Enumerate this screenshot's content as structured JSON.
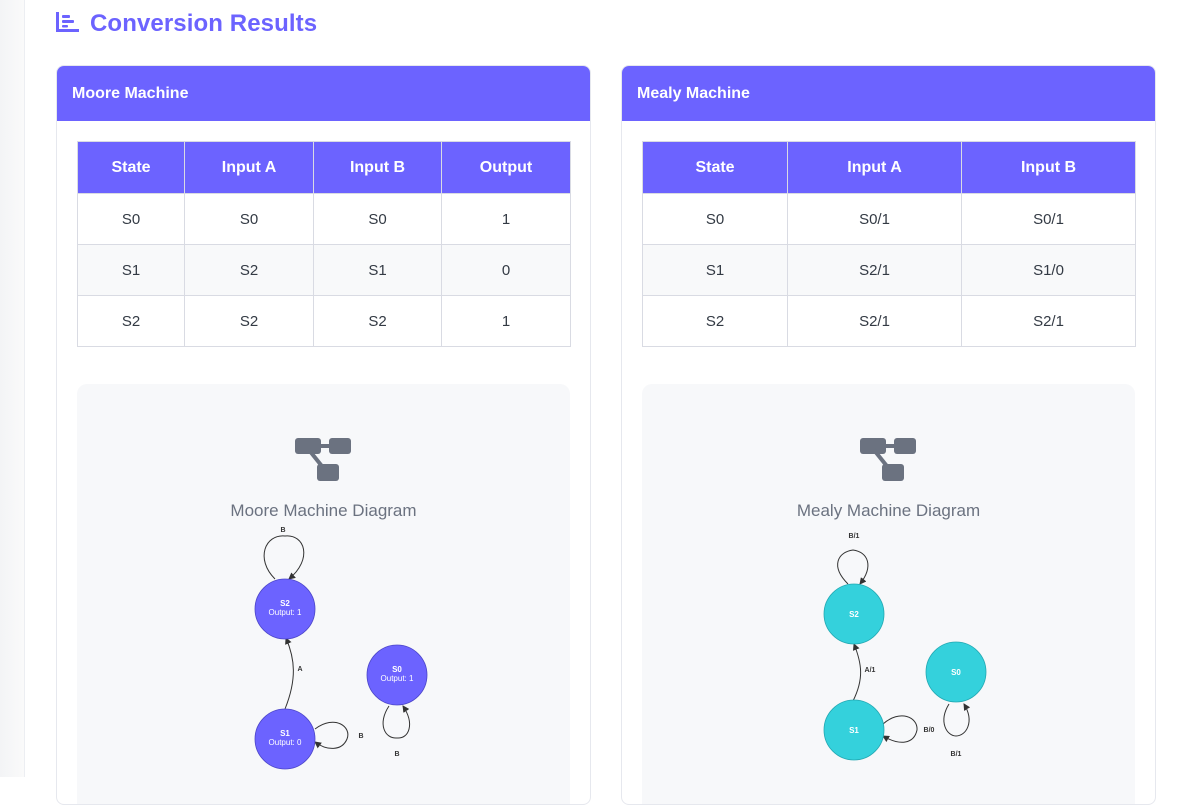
{
  "header": {
    "title": "Conversion Results",
    "icon": "chart-icon"
  },
  "moore": {
    "title": "Moore Machine",
    "columns": [
      "State",
      "Input A",
      "Input B",
      "Output"
    ],
    "rows": [
      [
        "S0",
        "S0",
        "S0",
        "1"
      ],
      [
        "S1",
        "S2",
        "S1",
        "0"
      ],
      [
        "S2",
        "S2",
        "S2",
        "1"
      ]
    ],
    "diagram": {
      "title": "Moore Machine Diagram",
      "icon": "diagram-icon",
      "node_color": "#6c63ff",
      "nodes": {
        "s2": {
          "name": "S2",
          "output": "Output: 1"
        },
        "s0": {
          "name": "S0",
          "output": "Output: 1"
        },
        "s1": {
          "name": "S1",
          "output": "Output: 0"
        }
      },
      "edges": {
        "s2_loop": "B",
        "s1_to_s2": "A",
        "s1_loop": "B",
        "s0_loop": "B"
      }
    }
  },
  "mealy": {
    "title": "Mealy Machine",
    "columns": [
      "State",
      "Input A",
      "Input B"
    ],
    "rows": [
      [
        "S0",
        "S0/1",
        "S0/1"
      ],
      [
        "S1",
        "S2/1",
        "S1/0"
      ],
      [
        "S2",
        "S2/1",
        "S2/1"
      ]
    ],
    "diagram": {
      "title": "Mealy Machine Diagram",
      "icon": "diagram-icon",
      "node_color": "#34d1dc",
      "nodes": {
        "s2": {
          "name": "S2"
        },
        "s0": {
          "name": "S0"
        },
        "s1": {
          "name": "S1"
        }
      },
      "edges": {
        "s2_loop": "B/1",
        "s1_to_s2": "A/1",
        "s1_loop": "B/0",
        "s0_loop": "B/1"
      }
    }
  }
}
